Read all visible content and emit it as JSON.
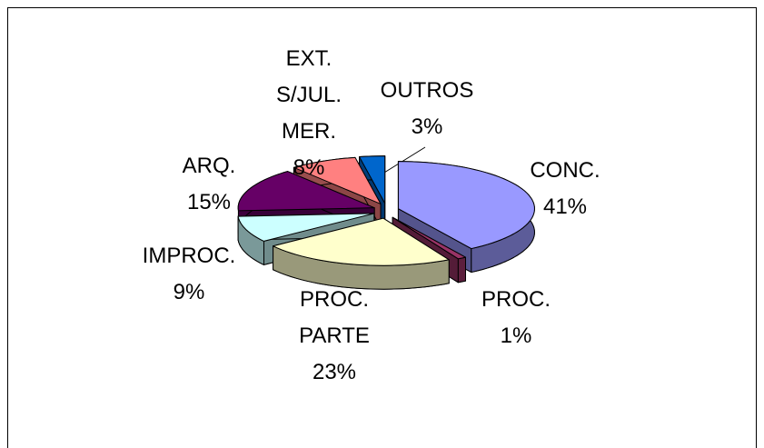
{
  "chart_data": {
    "type": "pie3d",
    "categories": [
      "CONC.",
      "PROC.",
      "PROC. PARTE",
      "IMPROC.",
      "ARQ.",
      "EXT. S/JUL. MER.",
      "OUTROS"
    ],
    "values": [
      41,
      1,
      23,
      9,
      15,
      8,
      3
    ],
    "value_labels": [
      "41%",
      "1%",
      "23%",
      "9%",
      "15%",
      "8%",
      "3%"
    ],
    "colors": [
      "#9999ff",
      "#993366",
      "#ffffcc",
      "#ccffff",
      "#660066",
      "#ff8080",
      "#0066cc"
    ]
  }
}
